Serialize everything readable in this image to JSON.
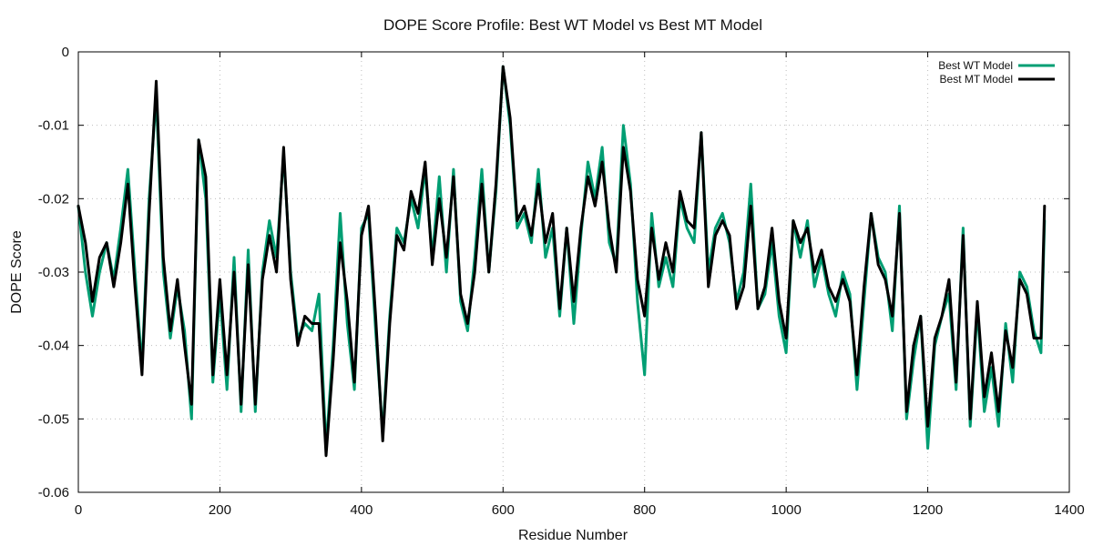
{
  "chart_data": {
    "type": "line",
    "title": "DOPE Score Profile: Best WT Model vs Best MT Model",
    "xlabel": "Residue Number",
    "ylabel": "DOPE Score",
    "xlim": [
      0,
      1400
    ],
    "ylim": [
      -0.06,
      0
    ],
    "xticks": [
      "0",
      "200",
      "400",
      "600",
      "800",
      "1000",
      "1200",
      "1400"
    ],
    "yticks": [
      "0",
      "-0.01",
      "-0.02",
      "-0.03",
      "-0.04",
      "-0.05",
      "-0.06"
    ],
    "grid": true,
    "legend_position": "top-right",
    "series": [
      {
        "name": "Best WT Model",
        "color": "#009e73",
        "x": [
          0,
          10,
          20,
          30,
          40,
          50,
          60,
          70,
          80,
          90,
          100,
          110,
          120,
          130,
          140,
          150,
          160,
          170,
          180,
          190,
          200,
          210,
          220,
          230,
          240,
          250,
          260,
          270,
          280,
          290,
          300,
          310,
          320,
          330,
          340,
          350,
          360,
          370,
          380,
          390,
          400,
          410,
          420,
          430,
          440,
          450,
          460,
          470,
          480,
          490,
          500,
          510,
          520,
          530,
          540,
          550,
          560,
          570,
          580,
          590,
          600,
          610,
          620,
          630,
          640,
          650,
          660,
          670,
          680,
          690,
          700,
          710,
          720,
          730,
          740,
          750,
          760,
          770,
          780,
          790,
          800,
          810,
          820,
          830,
          840,
          850,
          860,
          870,
          880,
          890,
          900,
          910,
          920,
          930,
          940,
          950,
          960,
          970,
          980,
          990,
          1000,
          1010,
          1020,
          1030,
          1040,
          1050,
          1060,
          1070,
          1080,
          1090,
          1100,
          1110,
          1120,
          1130,
          1140,
          1150,
          1160,
          1170,
          1180,
          1190,
          1200,
          1210,
          1220,
          1230,
          1240,
          1250,
          1260,
          1270,
          1280,
          1290,
          1300,
          1310,
          1320,
          1330,
          1340,
          1350,
          1360,
          1365
        ],
        "y": [
          -0.021,
          -0.03,
          -0.036,
          -0.03,
          -0.026,
          -0.031,
          -0.024,
          -0.016,
          -0.03,
          -0.043,
          -0.02,
          -0.006,
          -0.03,
          -0.039,
          -0.032,
          -0.038,
          -0.05,
          -0.012,
          -0.02,
          -0.045,
          -0.033,
          -0.046,
          -0.028,
          -0.049,
          -0.027,
          -0.049,
          -0.03,
          -0.023,
          -0.028,
          -0.014,
          -0.03,
          -0.039,
          -0.037,
          -0.038,
          -0.033,
          -0.054,
          -0.04,
          -0.022,
          -0.037,
          -0.046,
          -0.024,
          -0.022,
          -0.038,
          -0.052,
          -0.036,
          -0.024,
          -0.026,
          -0.02,
          -0.024,
          -0.016,
          -0.028,
          -0.017,
          -0.03,
          -0.016,
          -0.034,
          -0.038,
          -0.028,
          -0.016,
          -0.03,
          -0.019,
          -0.002,
          -0.01,
          -0.024,
          -0.022,
          -0.026,
          -0.016,
          -0.028,
          -0.024,
          -0.036,
          -0.024,
          -0.037,
          -0.025,
          -0.015,
          -0.02,
          -0.013,
          -0.026,
          -0.029,
          -0.01,
          -0.018,
          -0.034,
          -0.044,
          -0.022,
          -0.032,
          -0.028,
          -0.032,
          -0.02,
          -0.024,
          -0.026,
          -0.011,
          -0.03,
          -0.024,
          -0.022,
          -0.026,
          -0.034,
          -0.03,
          -0.018,
          -0.035,
          -0.033,
          -0.026,
          -0.036,
          -0.041,
          -0.023,
          -0.028,
          -0.023,
          -0.032,
          -0.028,
          -0.033,
          -0.036,
          -0.03,
          -0.033,
          -0.046,
          -0.034,
          -0.022,
          -0.028,
          -0.03,
          -0.038,
          -0.021,
          -0.05,
          -0.042,
          -0.036,
          -0.054,
          -0.04,
          -0.036,
          -0.033,
          -0.046,
          -0.024,
          -0.051,
          -0.035,
          -0.049,
          -0.043,
          -0.051,
          -0.037,
          -0.045,
          -0.03,
          -0.032,
          -0.038,
          -0.041,
          -0.023
        ]
      },
      {
        "name": "Best MT Model",
        "color": "#000000",
        "x": [
          0,
          10,
          20,
          30,
          40,
          50,
          60,
          70,
          80,
          90,
          100,
          110,
          120,
          130,
          140,
          150,
          160,
          170,
          180,
          190,
          200,
          210,
          220,
          230,
          240,
          250,
          260,
          270,
          280,
          290,
          300,
          310,
          320,
          330,
          340,
          350,
          360,
          370,
          380,
          390,
          400,
          410,
          420,
          430,
          440,
          450,
          460,
          470,
          480,
          490,
          500,
          510,
          520,
          530,
          540,
          550,
          560,
          570,
          580,
          590,
          600,
          610,
          620,
          630,
          640,
          650,
          660,
          670,
          680,
          690,
          700,
          710,
          720,
          730,
          740,
          750,
          760,
          770,
          780,
          790,
          800,
          810,
          820,
          830,
          840,
          850,
          860,
          870,
          880,
          890,
          900,
          910,
          920,
          930,
          940,
          950,
          960,
          970,
          980,
          990,
          1000,
          1010,
          1020,
          1030,
          1040,
          1050,
          1060,
          1070,
          1080,
          1090,
          1100,
          1110,
          1120,
          1130,
          1140,
          1150,
          1160,
          1170,
          1180,
          1190,
          1200,
          1210,
          1220,
          1230,
          1240,
          1250,
          1260,
          1270,
          1280,
          1290,
          1300,
          1310,
          1320,
          1330,
          1340,
          1350,
          1360,
          1365
        ],
        "y": [
          -0.021,
          -0.026,
          -0.034,
          -0.028,
          -0.026,
          -0.032,
          -0.026,
          -0.018,
          -0.032,
          -0.044,
          -0.022,
          -0.004,
          -0.028,
          -0.038,
          -0.031,
          -0.04,
          -0.048,
          -0.012,
          -0.017,
          -0.044,
          -0.031,
          -0.044,
          -0.03,
          -0.048,
          -0.029,
          -0.048,
          -0.031,
          -0.025,
          -0.03,
          -0.013,
          -0.031,
          -0.04,
          -0.036,
          -0.037,
          -0.037,
          -0.055,
          -0.042,
          -0.026,
          -0.034,
          -0.045,
          -0.025,
          -0.021,
          -0.036,
          -0.053,
          -0.037,
          -0.025,
          -0.027,
          -0.019,
          -0.022,
          -0.015,
          -0.029,
          -0.02,
          -0.028,
          -0.017,
          -0.033,
          -0.037,
          -0.03,
          -0.018,
          -0.03,
          -0.018,
          -0.002,
          -0.009,
          -0.023,
          -0.021,
          -0.025,
          -0.018,
          -0.026,
          -0.022,
          -0.035,
          -0.024,
          -0.034,
          -0.024,
          -0.017,
          -0.021,
          -0.015,
          -0.024,
          -0.03,
          -0.013,
          -0.019,
          -0.031,
          -0.036,
          -0.024,
          -0.031,
          -0.026,
          -0.03,
          -0.019,
          -0.023,
          -0.024,
          -0.011,
          -0.032,
          -0.025,
          -0.023,
          -0.025,
          -0.035,
          -0.032,
          -0.021,
          -0.035,
          -0.032,
          -0.024,
          -0.034,
          -0.039,
          -0.023,
          -0.026,
          -0.024,
          -0.03,
          -0.027,
          -0.032,
          -0.034,
          -0.031,
          -0.034,
          -0.044,
          -0.032,
          -0.022,
          -0.029,
          -0.031,
          -0.036,
          -0.022,
          -0.049,
          -0.04,
          -0.036,
          -0.051,
          -0.039,
          -0.036,
          -0.031,
          -0.045,
          -0.025,
          -0.05,
          -0.034,
          -0.047,
          -0.041,
          -0.049,
          -0.038,
          -0.043,
          -0.031,
          -0.033,
          -0.039,
          -0.039,
          -0.021
        ]
      }
    ]
  }
}
